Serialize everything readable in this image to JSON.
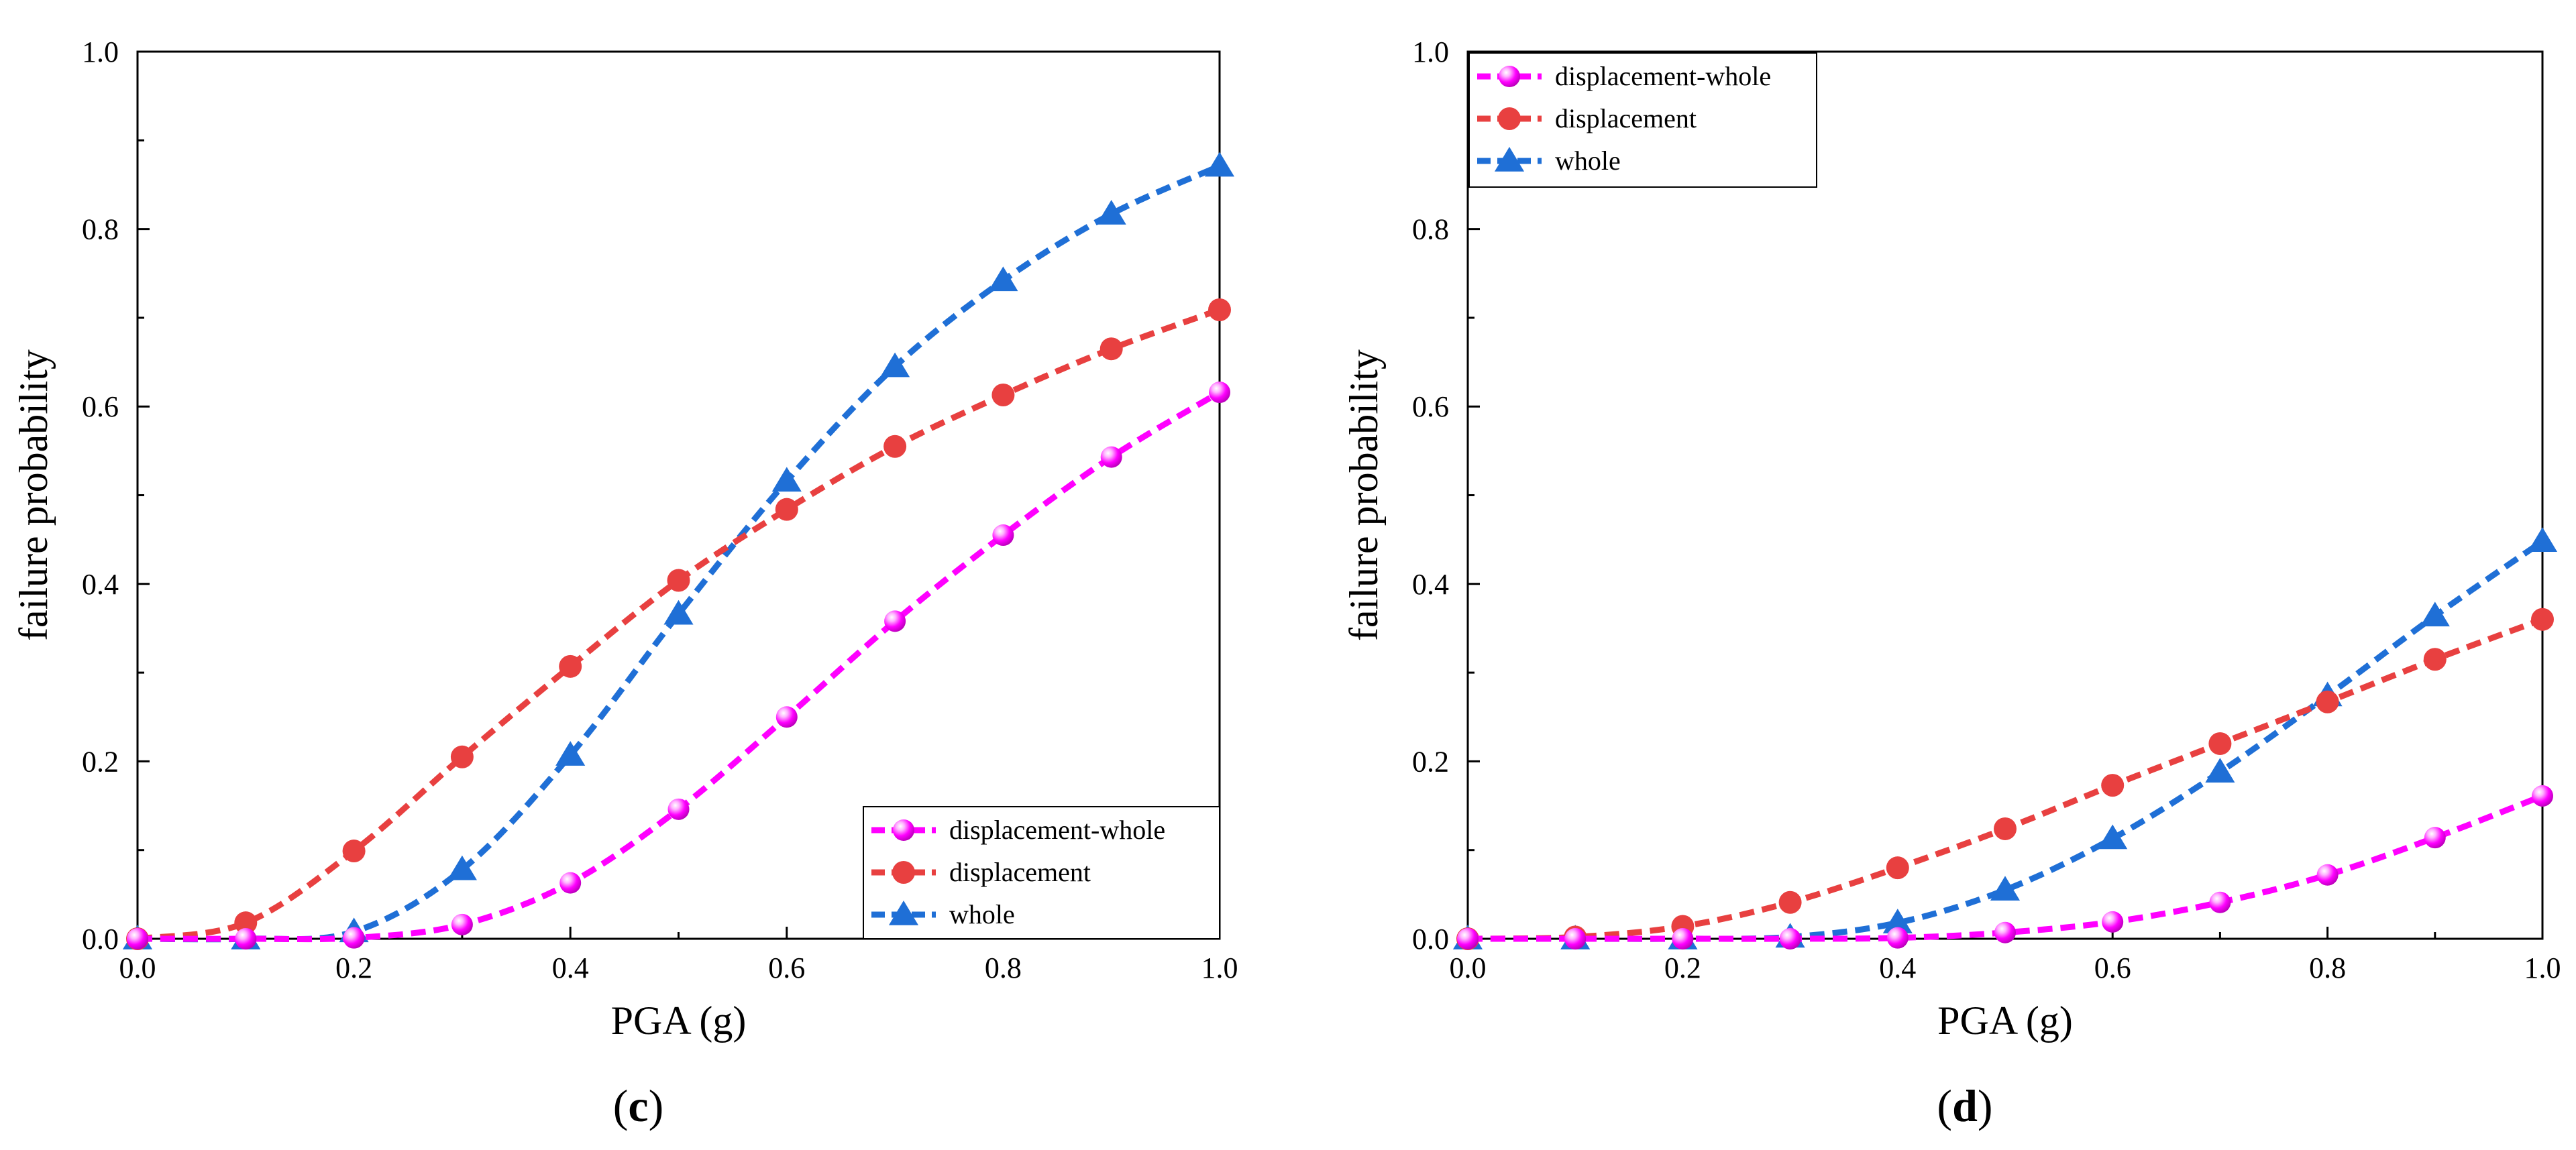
{
  "chart_data": [
    {
      "type": "line",
      "panel_label_open": "(",
      "panel_label_letter": "c",
      "panel_label_close": ")",
      "xlabel": "PGA (g)",
      "ylabel": "failure probability",
      "xlim": [
        0,
        1
      ],
      "ylim": [
        0,
        1
      ],
      "x_ticks": [
        "0.0",
        "0.2",
        "0.4",
        "0.6",
        "0.8",
        "1.0"
      ],
      "y_ticks": [
        "0.0",
        "0.2",
        "0.4",
        "0.6",
        "0.8",
        "1.0"
      ],
      "legend_position": "bottom-right",
      "x": [
        0,
        0.1,
        0.2,
        0.3,
        0.4,
        0.5,
        0.6,
        0.7,
        0.8,
        0.9,
        1.0
      ],
      "series": [
        {
          "name": "displacement-whole",
          "color": "#ff00ff",
          "marker": "sphere",
          "values": [
            0,
            0,
            0.001,
            0.016,
            0.063,
            0.146,
            0.25,
            0.358,
            0.455,
            0.543,
            0.616
          ]
        },
        {
          "name": "displacement",
          "color": "#e84040",
          "marker": "circle",
          "values": [
            0,
            0.018,
            0.099,
            0.205,
            0.307,
            0.404,
            0.484,
            0.555,
            0.613,
            0.665,
            0.709
          ]
        },
        {
          "name": "whole",
          "color": "#1f6fd6",
          "marker": "triangle",
          "values": [
            0,
            0,
            0.008,
            0.078,
            0.207,
            0.366,
            0.516,
            0.645,
            0.742,
            0.817,
            0.871
          ]
        }
      ]
    },
    {
      "type": "line",
      "panel_label_open": "(",
      "panel_label_letter": "d",
      "panel_label_close": ")",
      "xlabel": "PGA (g)",
      "ylabel": "failure probability",
      "xlim": [
        0,
        1
      ],
      "ylim": [
        0,
        1
      ],
      "x_ticks": [
        "0.0",
        "0.2",
        "0.4",
        "0.6",
        "0.8",
        "1.0"
      ],
      "y_ticks": [
        "0.0",
        "0.2",
        "0.4",
        "0.6",
        "0.8",
        "1.0"
      ],
      "legend_position": "top-left",
      "x": [
        0,
        0.1,
        0.2,
        0.3,
        0.4,
        0.5,
        0.6,
        0.7,
        0.8,
        0.9,
        1.0
      ],
      "series": [
        {
          "name": "displacement-whole",
          "color": "#ff00ff",
          "marker": "sphere",
          "values": [
            0,
            0,
            0,
            0,
            0.001,
            0.007,
            0.019,
            0.041,
            0.072,
            0.114,
            0.161
          ]
        },
        {
          "name": "displacement",
          "color": "#e84040",
          "marker": "circle",
          "values": [
            0,
            0.002,
            0.014,
            0.041,
            0.08,
            0.124,
            0.173,
            0.22,
            0.267,
            0.315,
            0.36
          ]
        },
        {
          "name": "whole",
          "color": "#1f6fd6",
          "marker": "triangle",
          "values": [
            0,
            0,
            0,
            0.002,
            0.018,
            0.055,
            0.113,
            0.188,
            0.274,
            0.364,
            0.448
          ]
        }
      ]
    }
  ]
}
